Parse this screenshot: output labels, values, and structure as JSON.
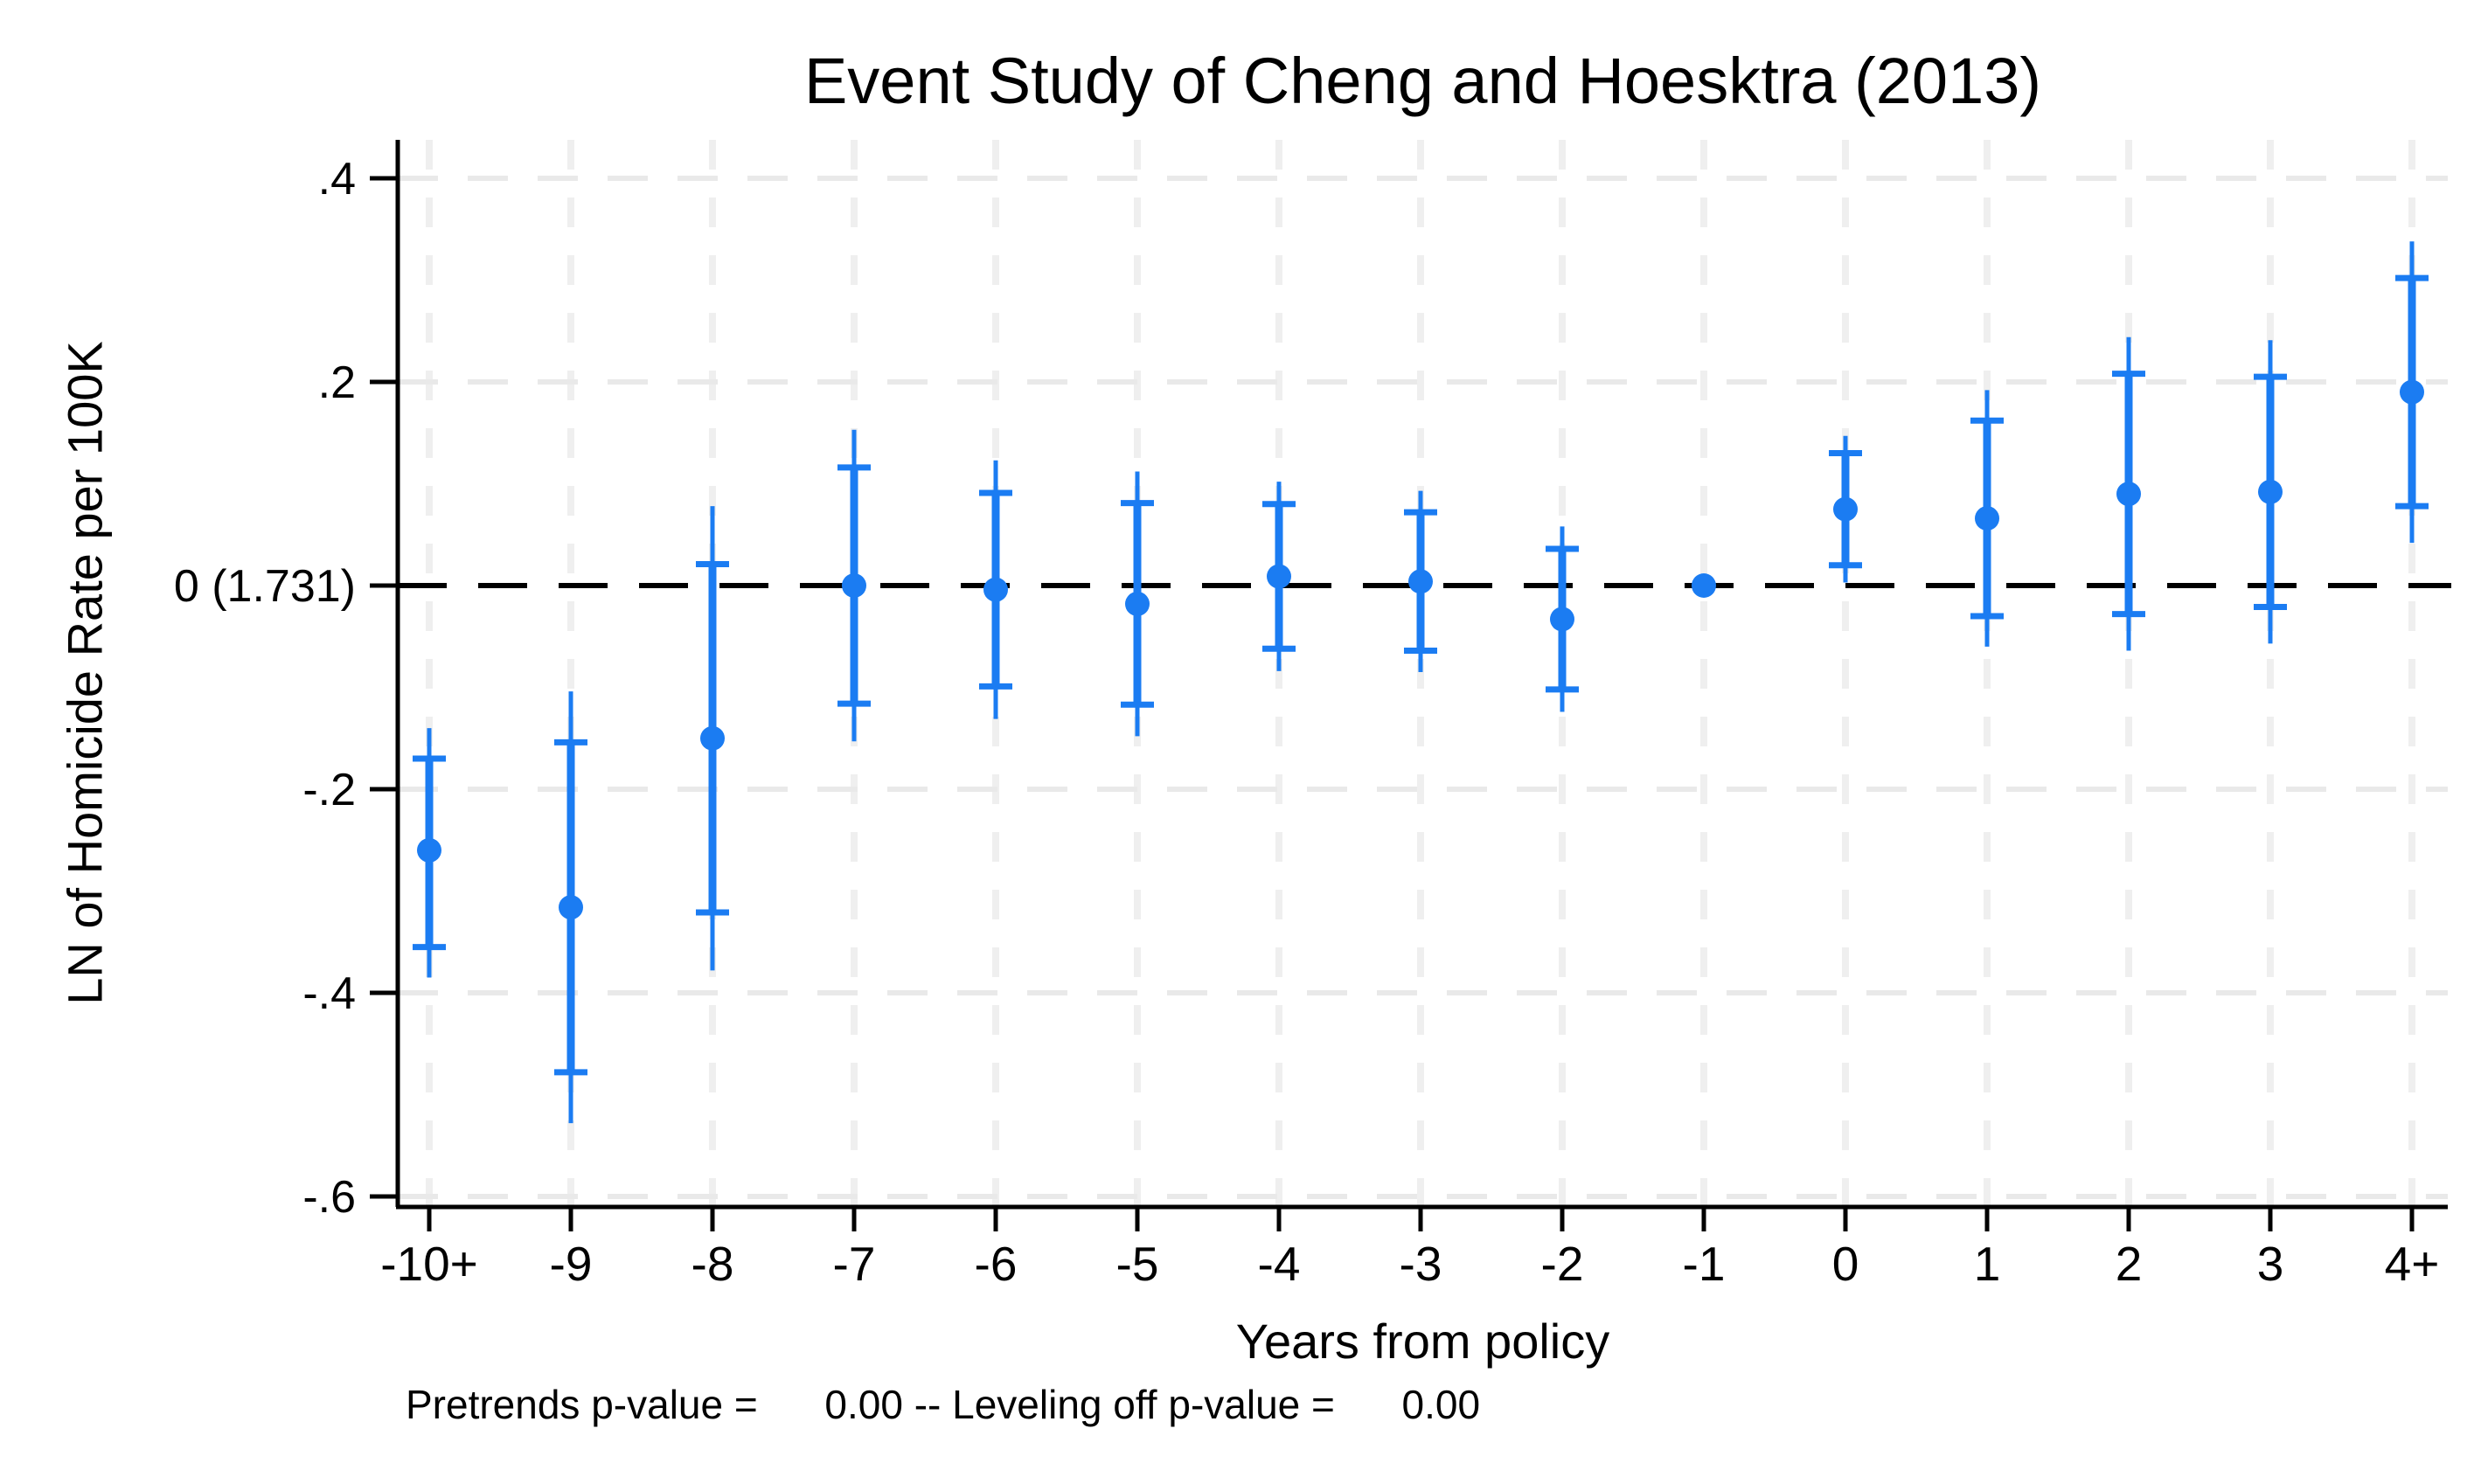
{
  "chart_data": {
    "type": "scatter",
    "subtype": "event-study-errorbar",
    "title": "Event Study of Cheng and Hoesktra (2013)",
    "xlabel": "Years from policy",
    "ylabel": "LN of Homicide Rate per 100K",
    "note": "Pretrends p-value =      0.00 -- Leveling off p-value =      0.00",
    "pretrends_p_value": "0.00",
    "leveling_off_p_value": "0.00",
    "categories": [
      "-10+",
      "-9",
      "-8",
      "-7",
      "-6",
      "-5",
      "-4",
      "-3",
      "-2",
      "-1",
      "0",
      "1",
      "2",
      "3",
      "4+"
    ],
    "y_axis": {
      "ticks": [
        {
          "label": ".4",
          "value": 0.4
        },
        {
          "label": ".2",
          "value": 0.2
        },
        {
          "label": "0 (1.731)",
          "value": 0.0
        },
        {
          "label": "-.2",
          "value": -0.2
        },
        {
          "label": "-.4",
          "value": -0.4
        },
        {
          "label": "-.6",
          "value": -0.6
        }
      ],
      "lim": [
        -0.61,
        0.44
      ]
    },
    "zero_reference": {
      "value": 0.0,
      "label": "0 (1.731)",
      "style": "black-dashed"
    },
    "grid": true,
    "legend": null,
    "points": [
      {
        "x": "-10+",
        "estimate": -0.26,
        "inner_ci": [
          -0.355,
          -0.17
        ],
        "outer_ci": [
          -0.385,
          -0.14
        ]
      },
      {
        "x": "-9",
        "estimate": -0.316,
        "inner_ci": [
          -0.478,
          -0.154
        ],
        "outer_ci": [
          -0.528,
          -0.104
        ]
      },
      {
        "x": "-8",
        "estimate": -0.15,
        "inner_ci": [
          -0.321,
          0.021
        ],
        "outer_ci": [
          -0.378,
          0.078
        ]
      },
      {
        "x": "-7",
        "estimate": 0.0,
        "inner_ci": [
          -0.116,
          0.116
        ],
        "outer_ci": [
          -0.153,
          0.153
        ]
      },
      {
        "x": "-6",
        "estimate": -0.004,
        "inner_ci": [
          -0.099,
          0.091
        ],
        "outer_ci": [
          -0.131,
          0.123
        ]
      },
      {
        "x": "-5",
        "estimate": -0.018,
        "inner_ci": [
          -0.117,
          0.081
        ],
        "outer_ci": [
          -0.148,
          0.112
        ]
      },
      {
        "x": "-4",
        "estimate": 0.009,
        "inner_ci": [
          -0.062,
          0.08
        ],
        "outer_ci": [
          -0.084,
          0.102
        ]
      },
      {
        "x": "-3",
        "estimate": 0.004,
        "inner_ci": [
          -0.064,
          0.072
        ],
        "outer_ci": [
          -0.085,
          0.093
        ]
      },
      {
        "x": "-2",
        "estimate": -0.033,
        "inner_ci": [
          -0.102,
          0.036
        ],
        "outer_ci": [
          -0.124,
          0.058
        ]
      },
      {
        "x": "-1",
        "estimate": 0.0,
        "inner_ci": null,
        "outer_ci": null
      },
      {
        "x": "0",
        "estimate": 0.075,
        "inner_ci": [
          0.02,
          0.13
        ],
        "outer_ci": [
          0.003,
          0.147
        ]
      },
      {
        "x": "1",
        "estimate": 0.066,
        "inner_ci": [
          -0.03,
          0.162
        ],
        "outer_ci": [
          -0.06,
          0.192
        ]
      },
      {
        "x": "2",
        "estimate": 0.09,
        "inner_ci": [
          -0.028,
          0.208
        ],
        "outer_ci": [
          -0.064,
          0.244
        ]
      },
      {
        "x": "3",
        "estimate": 0.092,
        "inner_ci": [
          -0.021,
          0.205
        ],
        "outer_ci": [
          -0.057,
          0.241
        ]
      },
      {
        "x": "4+",
        "estimate": 0.19,
        "inner_ci": [
          0.078,
          0.302
        ],
        "outer_ci": [
          0.042,
          0.338
        ]
      }
    ],
    "colors": {
      "point": "#1B7CF2",
      "grid_h": "#e9e9e9",
      "grid_v": "#efefef",
      "zero_line": "#000000",
      "axis": "#000000",
      "text": "#000000",
      "background": "#ffffff"
    }
  }
}
